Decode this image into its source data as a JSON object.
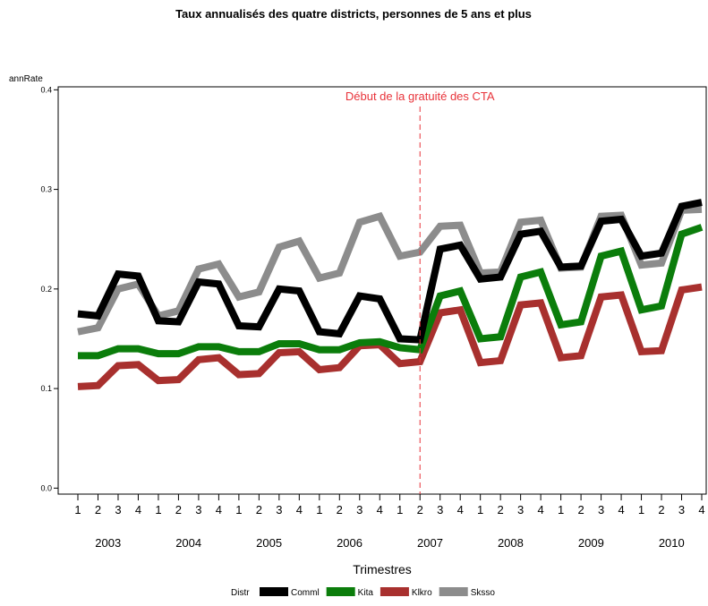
{
  "chart_data": {
    "type": "line",
    "title": "Taux annualisés des quatre districts, personnes de 5 ans et plus",
    "y_label": "annRate",
    "x_label": "Trimestres",
    "legend_title": "Distr",
    "categories": [
      "1",
      "2",
      "3",
      "4",
      "1",
      "2",
      "3",
      "4",
      "1",
      "2",
      "3",
      "4",
      "1",
      "2",
      "3",
      "4",
      "1",
      "2",
      "3",
      "4",
      "1",
      "2",
      "3",
      "4",
      "1",
      "2",
      "3",
      "4",
      "1",
      "2",
      "3",
      "4"
    ],
    "groups": [
      "2003",
      "2004",
      "2005",
      "2006",
      "2007",
      "2008",
      "2009",
      "2010"
    ],
    "ylim": [
      -0.006,
      0.403
    ],
    "yticks": [
      {
        "value": 0,
        "label": "0.0"
      },
      {
        "value": 0.1,
        "label": "0.1"
      },
      {
        "value": 0.2,
        "label": "0.2"
      },
      {
        "value": 0.3,
        "label": "0.3"
      },
      {
        "value": 0.4,
        "label": "0.4"
      }
    ],
    "vline": {
      "at": 17,
      "label": "Début de la gratuité des CTA",
      "color": "#e8333a"
    },
    "series": [
      {
        "name": "Comml",
        "color": "#000000",
        "values": [
          0.175,
          0.173,
          0.215,
          0.213,
          0.168,
          0.167,
          0.207,
          0.205,
          0.163,
          0.162,
          0.2,
          0.198,
          0.157,
          0.155,
          0.193,
          0.19,
          0.15,
          0.149,
          0.24,
          0.244,
          0.21,
          0.212,
          0.255,
          0.258,
          0.222,
          0.223,
          0.268,
          0.27,
          0.233,
          0.236,
          0.283,
          0.287
        ]
      },
      {
        "name": "Kita",
        "color": "#0b7d0b",
        "values": [
          0.133,
          0.133,
          0.14,
          0.14,
          0.135,
          0.135,
          0.142,
          0.142,
          0.137,
          0.137,
          0.145,
          0.145,
          0.139,
          0.139,
          0.146,
          0.147,
          0.141,
          0.139,
          0.193,
          0.198,
          0.15,
          0.152,
          0.212,
          0.217,
          0.164,
          0.167,
          0.233,
          0.238,
          0.179,
          0.183,
          0.255,
          0.262
        ]
      },
      {
        "name": "Klkro",
        "color": "#a8302e",
        "values": [
          0.102,
          0.103,
          0.123,
          0.124,
          0.108,
          0.109,
          0.129,
          0.131,
          0.114,
          0.115,
          0.136,
          0.137,
          0.119,
          0.121,
          0.143,
          0.144,
          0.125,
          0.127,
          0.176,
          0.179,
          0.126,
          0.128,
          0.184,
          0.186,
          0.131,
          0.133,
          0.192,
          0.194,
          0.137,
          0.138,
          0.199,
          0.202
        ]
      },
      {
        "name": "Sksso",
        "color": "#8c8c8c",
        "values": [
          0.157,
          0.161,
          0.2,
          0.205,
          0.173,
          0.178,
          0.22,
          0.225,
          0.192,
          0.197,
          0.242,
          0.248,
          0.211,
          0.216,
          0.267,
          0.273,
          0.233,
          0.237,
          0.263,
          0.264,
          0.216,
          0.217,
          0.267,
          0.269,
          0.221,
          0.222,
          0.273,
          0.274,
          0.224,
          0.226,
          0.279,
          0.28
        ]
      }
    ]
  }
}
